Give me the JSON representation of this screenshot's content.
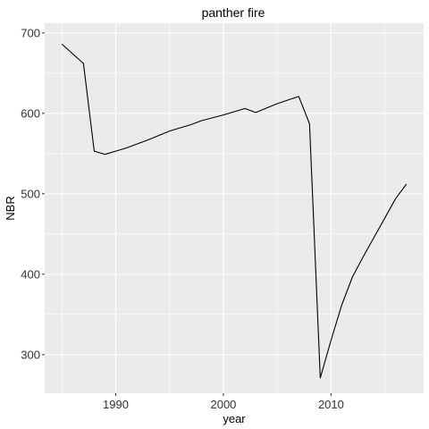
{
  "chart_data": {
    "type": "line",
    "title": "panther fire",
    "xlabel": "year",
    "ylabel": "NBR",
    "xlim": [
      1983.4,
      2018.6
    ],
    "ylim": [
      252,
      712
    ],
    "x_ticks": [
      1990,
      2000,
      2010
    ],
    "y_ticks": [
      300,
      400,
      500,
      600,
      700
    ],
    "grid": true,
    "legend": "none",
    "colors": {
      "panel": "#ebebeb",
      "grid": "#ffffff",
      "line": "#000000",
      "tick": "#333333"
    },
    "series": [
      {
        "x": [
          1985,
          1987,
          1988,
          1989,
          1990,
          1991,
          1993,
          1995,
          1997,
          1998,
          2000,
          2002,
          2003,
          2005,
          2007,
          2008,
          2009,
          2010,
          2011,
          2012,
          2013,
          2014,
          2015,
          2016,
          2017
        ],
        "values": [
          686,
          662,
          553,
          549,
          553,
          557,
          567,
          578,
          586,
          591,
          598,
          606,
          601,
          612,
          621,
          587,
          271,
          318,
          362,
          397,
          422,
          446,
          470,
          494,
          512
        ]
      }
    ]
  }
}
